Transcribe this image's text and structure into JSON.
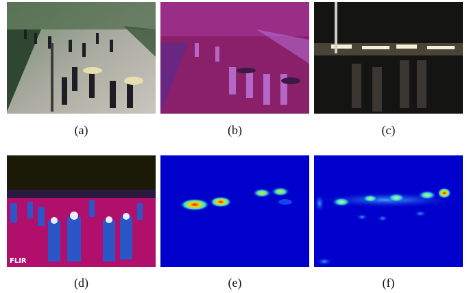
{
  "panels": [
    {
      "id": "a",
      "caption": "(a)",
      "kind": "visible-day-photo"
    },
    {
      "id": "b",
      "caption": "(b)",
      "kind": "thermal-magenta"
    },
    {
      "id": "c",
      "caption": "(c)",
      "kind": "visible-night-photo"
    },
    {
      "id": "d",
      "caption": "(d)",
      "kind": "thermal-flir",
      "watermark": "FLIR"
    },
    {
      "id": "e",
      "caption": "(e)",
      "kind": "density-map"
    },
    {
      "id": "f",
      "caption": "(f)",
      "kind": "density-map"
    }
  ]
}
